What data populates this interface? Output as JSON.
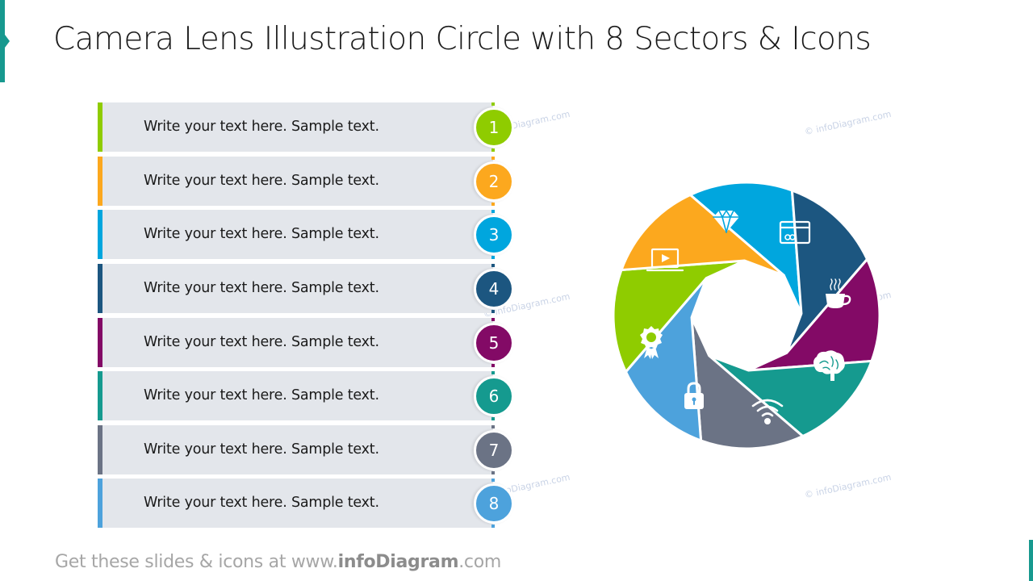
{
  "title": "Camera Lens Illustration Circle with 8 Sectors & Icons",
  "accent_color": "#17998f",
  "items": [
    {
      "number": "1",
      "label": "Write your text here. Sample text.",
      "color": "#8fcc00",
      "icon": "award-ribbon-icon"
    },
    {
      "number": "2",
      "label": "Write your text here. Sample text.",
      "color": "#fca81e",
      "icon": "laptop-video-icon"
    },
    {
      "number": "3",
      "label": "Write your text here. Sample text.",
      "color": "#00a6de",
      "icon": "diamond-icon"
    },
    {
      "number": "4",
      "label": "Write your text here. Sample text.",
      "color": "#1c5680",
      "icon": "credit-card-icon"
    },
    {
      "number": "5",
      "label": "Write your text here. Sample text.",
      "color": "#830a66",
      "icon": "coffee-cup-icon"
    },
    {
      "number": "6",
      "label": "Write your text here. Sample text.",
      "color": "#159a8f",
      "icon": "brain-icon"
    },
    {
      "number": "7",
      "label": "Write your text here. Sample text.",
      "color": "#6b7385",
      "icon": "wifi-icon"
    },
    {
      "number": "8",
      "label": "Write your text here. Sample text.",
      "color": "#4da2dc",
      "icon": "padlock-icon"
    }
  ],
  "watermarks": [
    "© infoDiagram.com",
    "© infoDiagram.com",
    "© infoDiagram.com",
    "© infoDiagram.com",
    "© infoDiagram.com",
    "© infoDiagram.com"
  ],
  "footer": {
    "prefix": "Get these slides & icons at www.",
    "brand": "infoDiagram",
    "suffix": ".com"
  }
}
